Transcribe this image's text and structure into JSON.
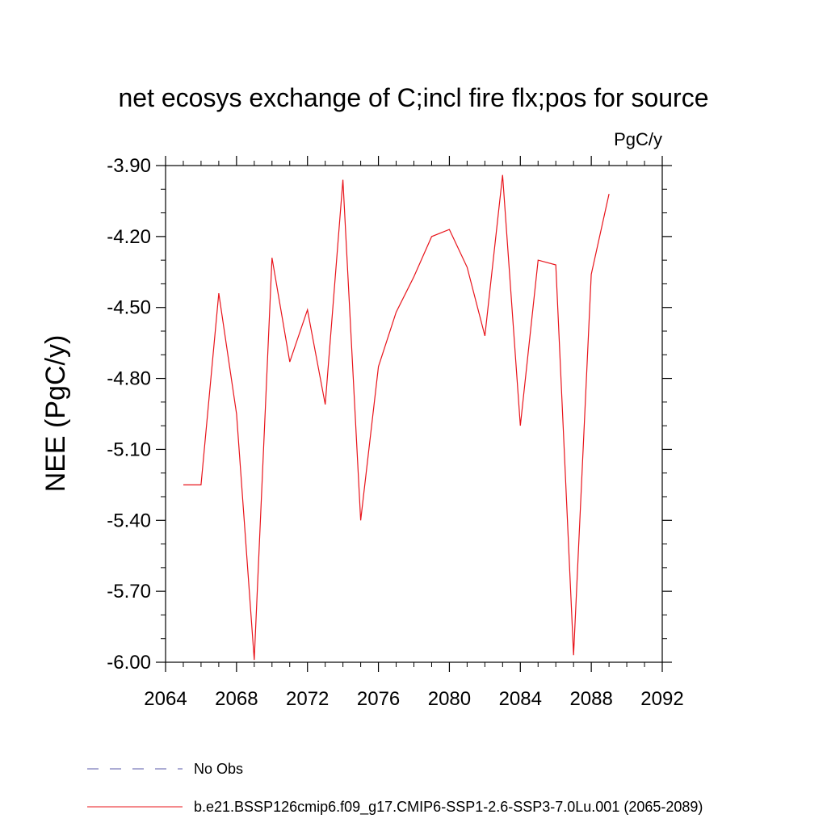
{
  "chart_data": {
    "type": "line",
    "title": "net ecosys exchange of C;incl fire flx;pos for source",
    "units_label": "PgC/y",
    "xlabel": "",
    "ylabel": "NEE  (PgC/y)",
    "xlim": [
      2064,
      2092
    ],
    "ylim": [
      -6.0,
      -3.9
    ],
    "x_ticks": [
      2064,
      2068,
      2072,
      2076,
      2080,
      2084,
      2088,
      2092
    ],
    "x_tick_labels": [
      "2064",
      "2068",
      "2072",
      "2076",
      "2080",
      "2084",
      "2088",
      "2092"
    ],
    "y_ticks": [
      -3.9,
      -4.2,
      -4.5,
      -4.8,
      -5.1,
      -5.4,
      -5.7,
      -6.0
    ],
    "y_tick_labels": [
      "-3.90",
      "-4.20",
      "-4.50",
      "-4.80",
      "-5.10",
      "-5.40",
      "-5.70",
      "-6.00"
    ],
    "grid": false,
    "legend_position": "bottom-left",
    "series": [
      {
        "name": "b.e21.BSSP126cmip6.f09_g17.CMIP6-SSP1-2.6-SSP3-7.0Lu.001 (2065-2089)",
        "color": "#e8141b",
        "style": "solid",
        "x": [
          2065,
          2066,
          2067,
          2068,
          2069,
          2070,
          2071,
          2072,
          2073,
          2074,
          2075,
          2076,
          2077,
          2078,
          2079,
          2080,
          2081,
          2082,
          2083,
          2084,
          2085,
          2086,
          2087,
          2088,
          2089
        ],
        "y": [
          -5.25,
          -5.25,
          -4.44,
          -4.95,
          -5.99,
          -4.29,
          -4.73,
          -4.51,
          -4.91,
          -3.96,
          -5.4,
          -4.75,
          -4.52,
          -4.37,
          -4.2,
          -4.17,
          -4.33,
          -4.62,
          -3.94,
          -5.0,
          -4.3,
          -4.32,
          -5.97,
          -4.36,
          -4.02
        ]
      }
    ],
    "legend": [
      {
        "label": "No Obs",
        "color": "#5a5aa8",
        "style": "dashed"
      },
      {
        "label": "b.e21.BSSP126cmip6.f09_g17.CMIP6-SSP1-2.6-SSP3-7.0Lu.001 (2065-2089)",
        "color": "#e8141b",
        "style": "solid"
      }
    ]
  }
}
